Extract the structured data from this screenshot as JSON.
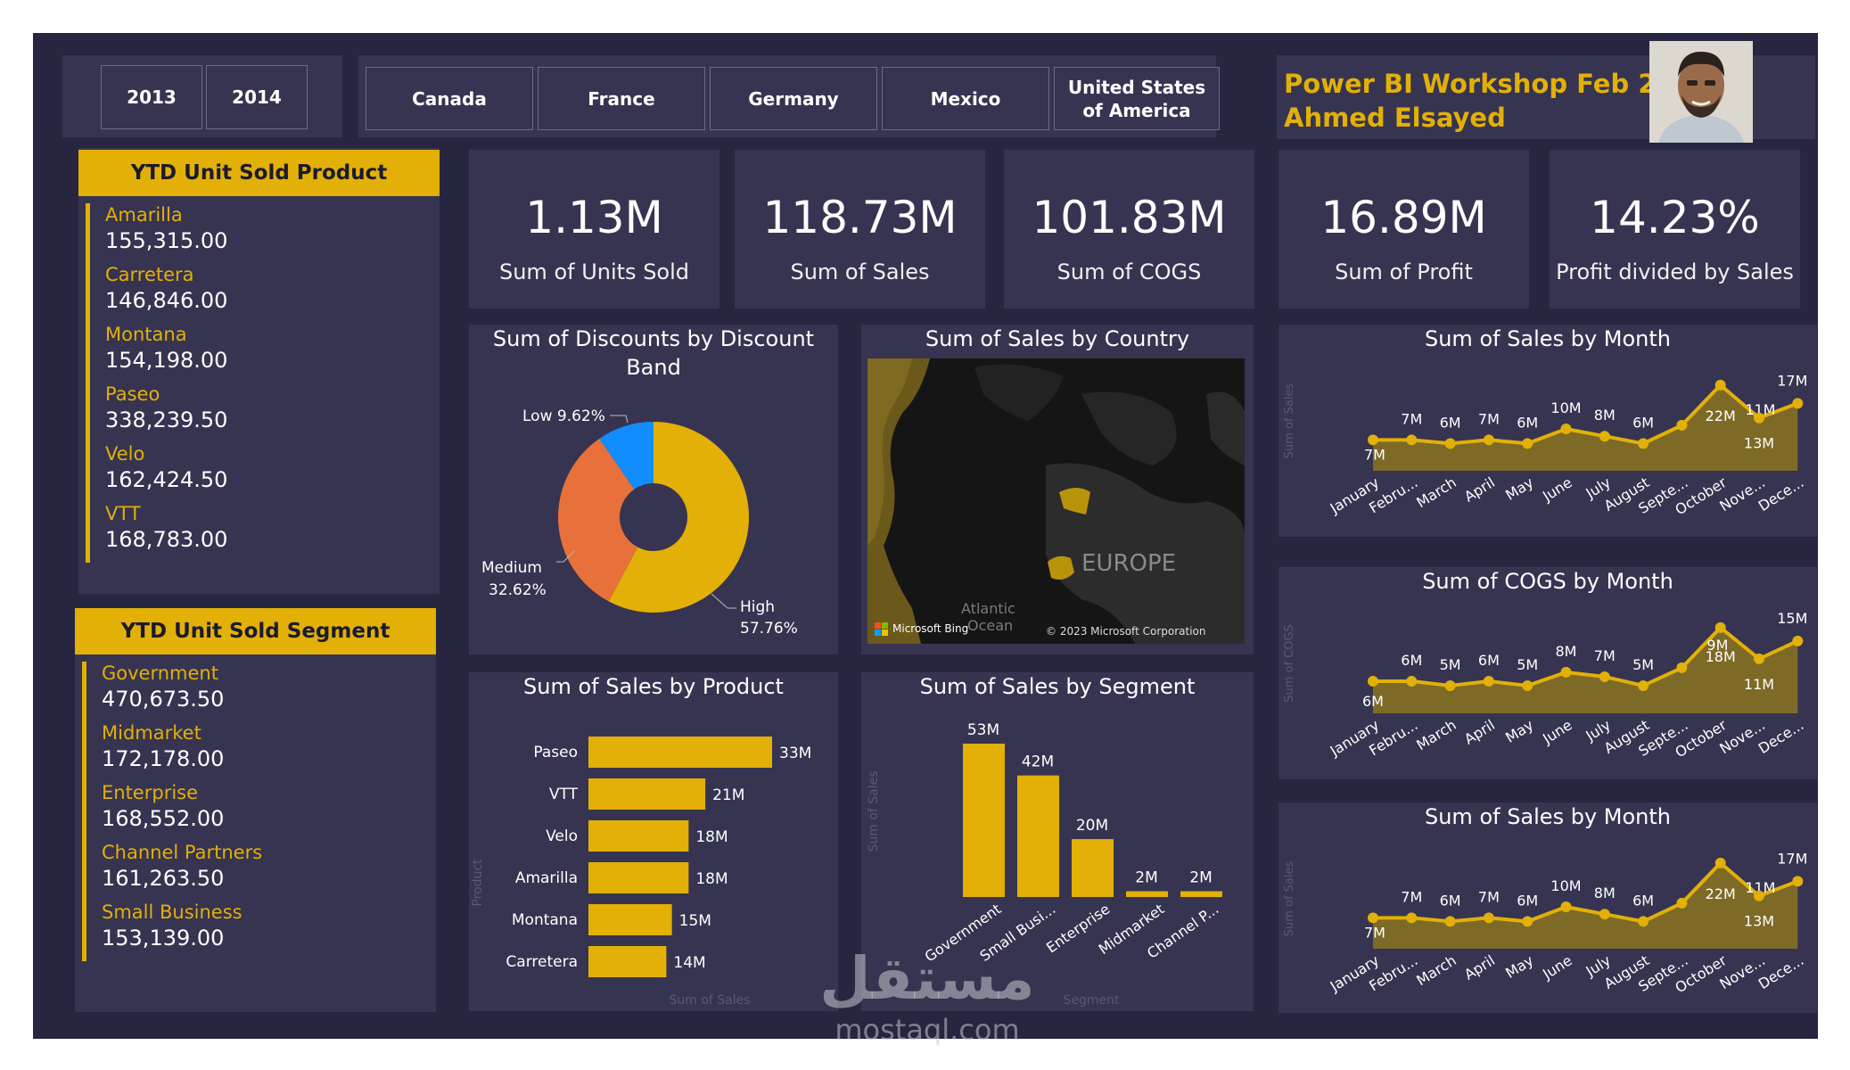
{
  "filters": {
    "years": [
      "2013",
      "2014"
    ],
    "countries": [
      "Canada",
      "France",
      "Germany",
      "Mexico",
      "United States of America"
    ]
  },
  "header": {
    "title": "Power BI Workshop Feb 23",
    "author": "Ahmed Elsayed"
  },
  "kpis": [
    {
      "value": "1.13M",
      "label": "Sum of Units Sold"
    },
    {
      "value": "118.73M",
      "label": "Sum of  Sales"
    },
    {
      "value": "101.83M",
      "label": "Sum of COGS"
    },
    {
      "value": "16.89M",
      "label": "Sum of Profit"
    },
    {
      "value": "14.23%",
      "label": "Profit divided by  Sales"
    }
  ],
  "product_list": {
    "title": "YTD Unit Sold Product",
    "items": [
      {
        "name": "Amarilla",
        "value": "155,315.00"
      },
      {
        "name": "Carretera",
        "value": "146,846.00"
      },
      {
        "name": "Montana",
        "value": "154,198.00"
      },
      {
        "name": "Paseo",
        "value": "338,239.50"
      },
      {
        "name": "Velo",
        "value": "162,424.50"
      },
      {
        "name": "VTT",
        "value": "168,783.00"
      }
    ]
  },
  "segment_list": {
    "title": "YTD Unit Sold Segment",
    "items": [
      {
        "name": "Government",
        "value": "470,673.50"
      },
      {
        "name": "Midmarket",
        "value": "172,178.00"
      },
      {
        "name": "Enterprise",
        "value": "168,552.00"
      },
      {
        "name": "Channel Partners",
        "value": "161,263.50"
      },
      {
        "name": "Small Business",
        "value": "153,139.00"
      }
    ]
  },
  "map": {
    "title": "Sum of Sales by Country",
    "region_label": "EUROPE",
    "ocean_label": "Atlantic Ocean",
    "ocean_line1": "Atlantic",
    "ocean_line2": "Ocean",
    "provider": "Microsoft Bing",
    "copyright": "© 2023 Microsoft Corporation"
  },
  "colors": {
    "accent": "#E2B007",
    "background": "#272540",
    "panel": "#363450",
    "donut_high": "#E2B007",
    "donut_medium": "#E8703A",
    "donut_low": "#118DFF"
  },
  "watermark": {
    "arabic": "مستقل",
    "latin": "mostaql.com"
  },
  "chart_data": [
    {
      "id": "discounts",
      "type": "pie",
      "title": "Sum of Discounts by Discount Band",
      "title_line1": "Sum of Discounts by Discount",
      "title_line2": "Band",
      "slices": [
        {
          "name": "High",
          "value": 57.76,
          "label": "57.76%"
        },
        {
          "name": "Medium",
          "value": 32.62,
          "label": "32.62%"
        },
        {
          "name": "Low",
          "value": 9.62,
          "label": "Low 9.62%"
        }
      ]
    },
    {
      "id": "sales_by_product",
      "type": "bar",
      "orientation": "horizontal",
      "title": "Sum of Sales by Product",
      "xlabel": "Sum of Sales",
      "ylabel": "Product",
      "categories": [
        "Paseo",
        "VTT",
        "Velo",
        "Amarilla",
        "Montana",
        "Carretera"
      ],
      "values": [
        33,
        21,
        18,
        18,
        15,
        14
      ],
      "labels": [
        "33M",
        "21M",
        "18M",
        "18M",
        "15M",
        "14M"
      ]
    },
    {
      "id": "sales_by_segment",
      "type": "bar",
      "title": "Sum of Sales by Segment",
      "xlabel": "Segment",
      "ylabel": "Sum of Sales",
      "categories": [
        "Government",
        "Small Busi...",
        "Enterprise",
        "Midmarket",
        "Channel P..."
      ],
      "values": [
        53,
        42,
        20,
        2,
        2
      ],
      "labels": [
        "53M",
        "42M",
        "20M",
        "2M",
        "2M"
      ]
    },
    {
      "id": "sales_by_month_1",
      "type": "area",
      "title": "Sum of Sales by Month",
      "ylabel": "Sum of Sales",
      "categories": [
        "January",
        "Febru...",
        "March",
        "April",
        "May",
        "June",
        "July",
        "August",
        "Septe...",
        "October",
        "Nove...",
        "Dece..."
      ],
      "values": [
        7,
        7,
        6,
        7,
        6,
        10,
        8,
        6,
        11,
        22,
        13,
        17
      ],
      "labels": [
        "7M",
        "7M",
        "6M",
        "7M",
        "6M",
        "10M",
        "8M",
        "6M",
        "11M",
        "22M",
        "13M",
        "17M"
      ]
    },
    {
      "id": "cogs_by_month",
      "type": "area",
      "title": "Sum of COGS by Month",
      "ylabel": "Sum of COGS",
      "categories": [
        "January",
        "Febru...",
        "March",
        "April",
        "May",
        "June",
        "July",
        "August",
        "Septe...",
        "October",
        "Nove...",
        "Dece..."
      ],
      "values": [
        6,
        6,
        5,
        6,
        5,
        8,
        7,
        5,
        9,
        18,
        11,
        15
      ],
      "labels": [
        "6M",
        "6M",
        "5M",
        "6M",
        "5M",
        "8M",
        "7M",
        "5M",
        "9M",
        "18M",
        "11M",
        "15M"
      ]
    },
    {
      "id": "sales_by_month_2",
      "type": "area",
      "title": "Sum of Sales by Month",
      "ylabel": "Sum of Sales",
      "categories": [
        "January",
        "Febru...",
        "March",
        "April",
        "May",
        "June",
        "July",
        "August",
        "Septe...",
        "October",
        "Nove...",
        "Dece..."
      ],
      "values": [
        7,
        7,
        6,
        7,
        6,
        10,
        8,
        6,
        11,
        22,
        13,
        17
      ],
      "labels": [
        "7M",
        "7M",
        "6M",
        "7M",
        "6M",
        "10M",
        "8M",
        "6M",
        "11M",
        "22M",
        "13M",
        "17M"
      ]
    }
  ]
}
